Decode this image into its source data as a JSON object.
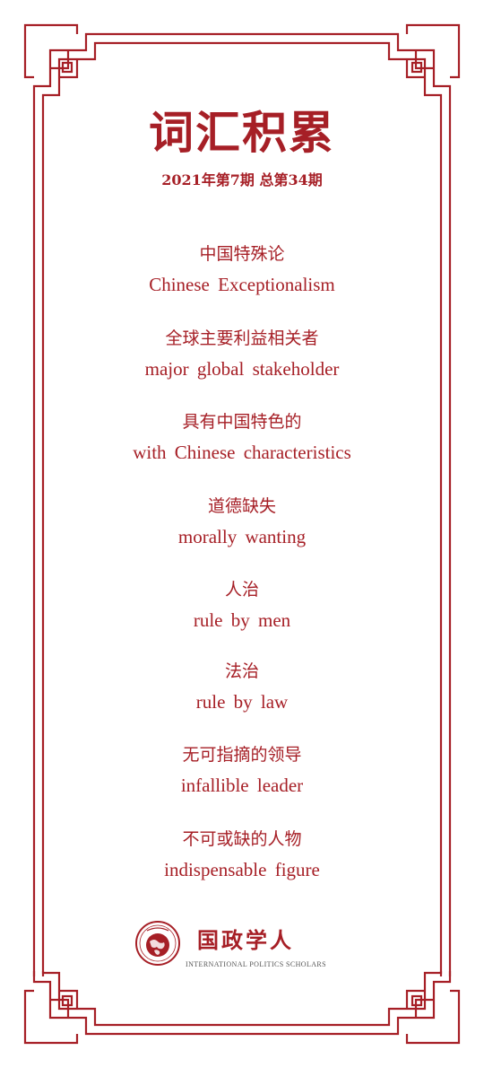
{
  "header": {
    "title": "词汇积累",
    "issue": "2021年第7期 总第34期"
  },
  "terms": [
    {
      "zh": "中国特殊论",
      "en": "Chinese Exceptionalism"
    },
    {
      "zh": "全球主要利益相关者",
      "en": "major global stakeholder"
    },
    {
      "zh": "具有中国特色的",
      "en": "with Chinese characteristics"
    },
    {
      "zh": "道德缺失",
      "en": "morally wanting"
    },
    {
      "zh": "人治",
      "en": "rule by men"
    },
    {
      "zh": "法治",
      "en": "rule by law"
    },
    {
      "zh": "无可指摘的领导",
      "en": "infallible leader"
    },
    {
      "zh": "不可或缺的人物",
      "en": "indispensable figure"
    }
  ],
  "footer": {
    "logo_zh": "国政学人",
    "logo_en": "INTERNATIONAL POLITICS SCHOLARS",
    "emblem_icon": "globe-emblem-icon"
  },
  "colors": {
    "accent": "#a61f26",
    "background": "#ffffff"
  }
}
